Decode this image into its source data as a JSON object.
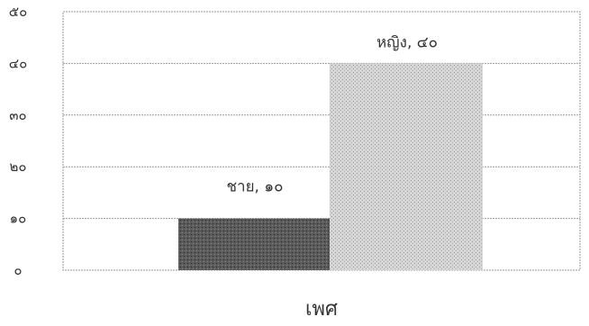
{
  "chart_data": {
    "type": "bar",
    "categories": [
      "ชาย",
      "หญิง"
    ],
    "values": [
      10,
      40
    ],
    "data_labels": [
      "ชาย, ๑๐",
      "หญิง, ๔๐"
    ],
    "colors": [
      "#555555",
      "#c8c8c8"
    ],
    "xlabel": "เพศ",
    "ylabel": "",
    "ylim": [
      0,
      50
    ],
    "yticks": [
      0,
      10,
      20,
      30,
      40,
      50
    ],
    "ytick_labels": [
      "๐",
      "๑๐",
      "๒๐",
      "๓๐",
      "๔๐",
      "๕๐"
    ],
    "grid": true,
    "legend": "none"
  }
}
